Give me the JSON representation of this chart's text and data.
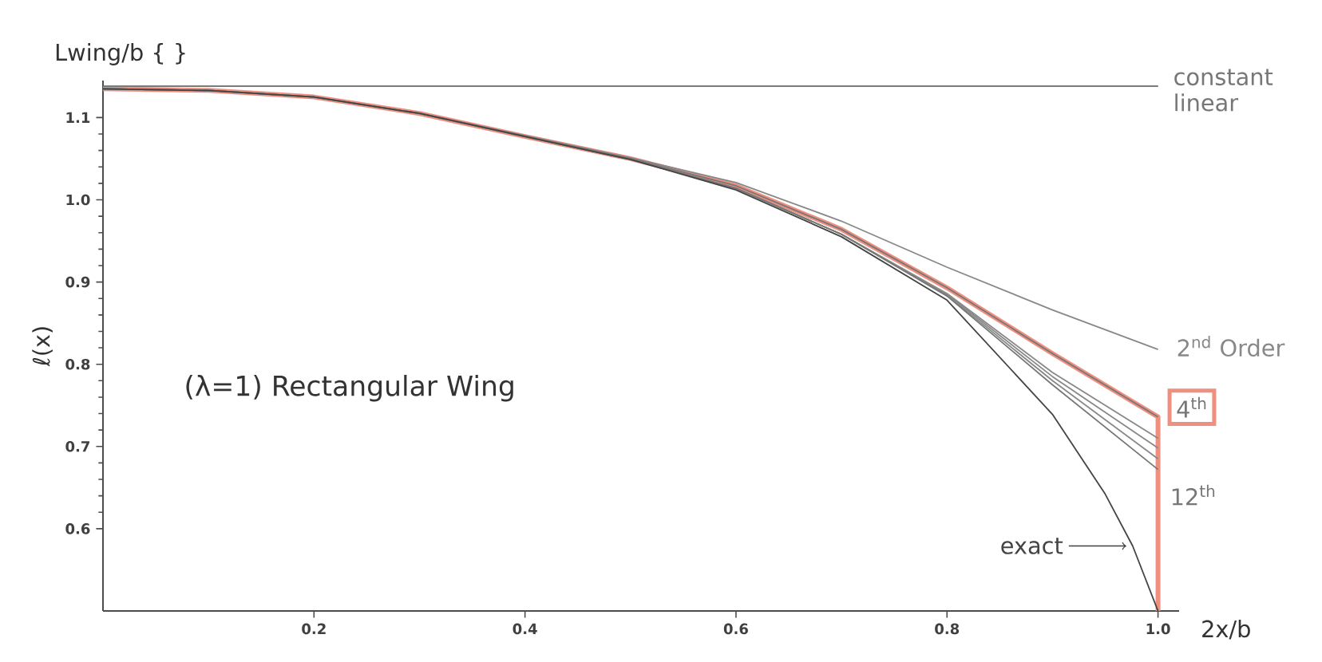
{
  "chart_data": {
    "type": "line",
    "xlabel": "2x/b",
    "ylabel": "ℓ(x)",
    "annotations": [
      "(λ=1)  Rectangular Wing",
      "Lwing/b { }"
    ],
    "x": [
      0,
      0.1,
      0.2,
      0.3,
      0.4,
      0.5,
      0.6,
      0.7,
      0.8,
      0.9,
      1.0
    ],
    "xlim": [
      0,
      1.02
    ],
    "ylim": [
      0.5,
      1.145
    ],
    "xticks": [
      0.2,
      0.4,
      0.6,
      0.8,
      {
        "value": 1,
        "label": "1.0"
      }
    ],
    "yticks": [
      0.6,
      0.7,
      0.8,
      0.9,
      {
        "value": 1,
        "label": "1.0"
      },
      1.1
    ],
    "series": [
      {
        "color": "#ef8f7f",
        "x": [
          0,
          0.1,
          0.2,
          0.3,
          0.4,
          0.5,
          0.6,
          0.7,
          0.8,
          0.9,
          1.0,
          1.0
        ],
        "values": [
          1.135,
          1.133,
          1.125,
          1.105,
          1.077,
          1.05,
          1.017,
          0.964,
          0.893,
          0.813,
          0.736,
          0.5
        ]
      },
      {
        "name": "constant",
        "color": "#777777",
        "values": [
          1.138,
          1.138,
          1.138,
          1.138,
          1.138,
          1.138,
          1.138,
          1.138,
          1.138,
          1.138,
          1.138
        ]
      },
      {
        "name": "linear",
        "color": "#777777",
        "values": [
          1.138,
          1.138,
          1.138,
          1.138,
          1.138,
          1.138,
          1.138,
          1.138,
          1.138,
          1.138,
          1.138
        ]
      },
      {
        "name": "2$^{nd}$ Order",
        "color": "#888888",
        "values": [
          1.135,
          1.133,
          1.125,
          1.105,
          1.078,
          1.051,
          1.021,
          0.974,
          0.918,
          0.866,
          0.818
        ]
      },
      {
        "name": "4$^{th}$",
        "color": "#777777",
        "values": [
          1.135,
          1.133,
          1.125,
          1.105,
          1.077,
          1.05,
          1.017,
          0.964,
          0.893,
          0.813,
          0.736
        ]
      },
      {
        "color": "#888888",
        "values": [
          1.135,
          1.133,
          1.125,
          1.105,
          1.077,
          1.049,
          1.014,
          0.958,
          0.886,
          0.79,
          0.71
        ]
      },
      {
        "color": "#888888",
        "values": [
          1.135,
          1.133,
          1.125,
          1.105,
          1.077,
          1.049,
          1.014,
          0.958,
          0.885,
          0.785,
          0.698
        ]
      },
      {
        "color": "#888888",
        "values": [
          1.135,
          1.133,
          1.125,
          1.105,
          1.077,
          1.049,
          1.014,
          0.958,
          0.884,
          0.78,
          0.685
        ]
      },
      {
        "name": "12$^{th}$",
        "color": "#777777",
        "values": [
          1.135,
          1.133,
          1.125,
          1.105,
          1.077,
          1.049,
          1.014,
          0.958,
          0.883,
          0.775,
          0.672
        ]
      },
      {
        "name": "exact",
        "color": "#444444",
        "x": [
          0,
          0.1,
          0.2,
          0.3,
          0.4,
          0.5,
          0.6,
          0.7,
          0.8,
          0.9,
          0.95,
          0.976,
          1.0
        ],
        "values": [
          1.135,
          1.133,
          1.125,
          1.105,
          1.077,
          1.049,
          1.012,
          0.955,
          0.878,
          0.739,
          0.642,
          0.579,
          0.5
        ]
      }
    ]
  }
}
